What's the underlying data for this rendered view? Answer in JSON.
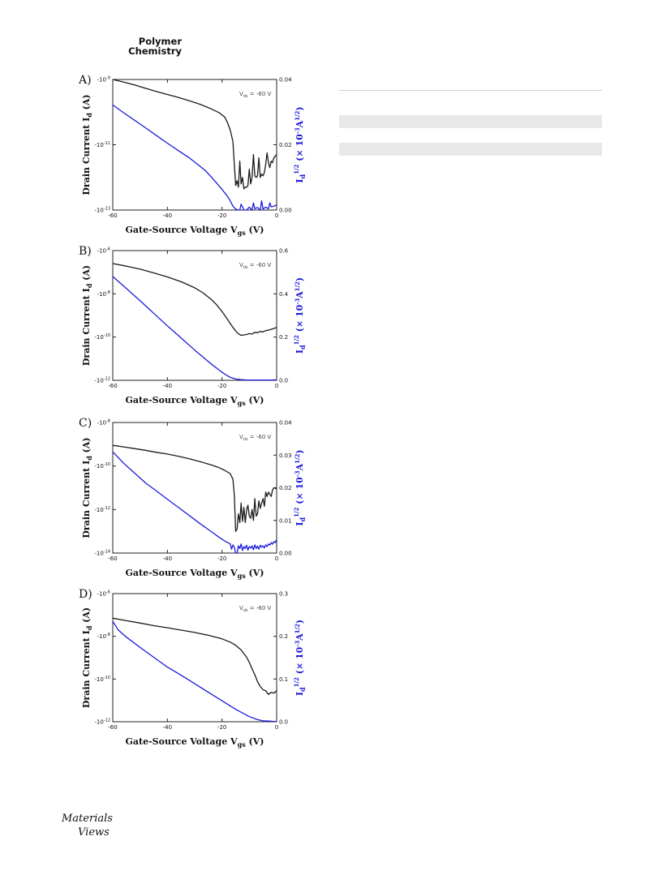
{
  "header": {
    "journal_line1": "Polymer",
    "journal_line2": "Chemistry"
  },
  "logo": {
    "line1": "Materials",
    "line2": "Views"
  },
  "colors": {
    "left_series": "#1a1a1a",
    "right_series": "#1a1adc"
  },
  "chart_data": [
    {
      "type": "line",
      "panel": "A)",
      "annotation": {
        "prefix": "V",
        "sub": "ds",
        "suffix": " = -60 V"
      },
      "xlabel": {
        "main": "Gate-Source Voltage V",
        "sub": "gs",
        "unit": " (V)"
      },
      "ylabel_left": {
        "main": "Drain Current I",
        "sub": "d",
        "unit": " (A)"
      },
      "ylabel_right": {
        "main": "I",
        "sub": "d",
        "sup": "1/2",
        "unit": " (× 10",
        "unit_sup": "-3",
        "unit_tail": "A",
        "unit_sup2": "1/2",
        "close": ")"
      },
      "xlim": [
        -60,
        0
      ],
      "x_ticks": [
        -60,
        -40,
        -20,
        0
      ],
      "x_tick_labels": [
        "-60",
        "-40",
        "-20",
        "0"
      ],
      "left_scale": "log",
      "left_ylim_exp": [
        -13,
        -9
      ],
      "left_ticks_exp": [
        -13,
        -11,
        -9
      ],
      "left_tick_labels": [
        {
          "base": "-10",
          "exp": "-13"
        },
        {
          "base": "-10",
          "exp": "-11"
        },
        {
          "base": "-10",
          "exp": "-9"
        }
      ],
      "right_ylim": [
        0,
        0.04
      ],
      "right_ticks": [
        0.0,
        0.02,
        0.04
      ],
      "right_tick_labels": [
        "0.00",
        "0.02",
        "0.04"
      ],
      "series": [
        {
          "axis": "left",
          "x": [
            -60,
            -56,
            -52,
            -48,
            -44,
            -40,
            -36,
            -32,
            -28,
            -24,
            -21,
            -19,
            -18,
            -17,
            -16,
            -15.5,
            -15,
            -14.5,
            -14,
            -13.5,
            -13,
            -12.5,
            -12,
            -11.5,
            -11,
            -10.5,
            -10,
            -9.5,
            -9,
            -8.5,
            -8,
            -7.5,
            -7,
            -6.5,
            -6,
            -5.5,
            -5,
            -4.5,
            -4,
            -3.5,
            -3,
            -2.5,
            -2,
            -1.5,
            -1,
            -0.5,
            0
          ],
          "y": [
            -9.0,
            -9.08,
            -9.17,
            -9.27,
            -9.37,
            -9.46,
            -9.55,
            -9.65,
            -9.76,
            -9.9,
            -10.02,
            -10.15,
            -10.32,
            -10.55,
            -10.9,
            -11.6,
            -12.25,
            -12.1,
            -12.3,
            -11.5,
            -12.2,
            -12.0,
            -12.35,
            -12.3,
            -12.3,
            -12.25,
            -11.75,
            -12.2,
            -12.0,
            -11.3,
            -11.95,
            -12.0,
            -11.95,
            -11.4,
            -12.0,
            -11.9,
            -11.95,
            -11.85,
            -11.6,
            -11.25,
            -11.55,
            -11.7,
            -11.5,
            -11.55,
            -11.4,
            -11.35,
            -11.3
          ]
        },
        {
          "axis": "right",
          "x": [
            -60,
            -56,
            -52,
            -48,
            -44,
            -40,
            -36,
            -32,
            -28,
            -26,
            -24,
            -22,
            -20,
            -18,
            -17,
            -16,
            -15,
            -14,
            -13.5,
            -13,
            -12.5,
            -12,
            -11,
            -10,
            -9,
            -8.5,
            -8,
            -7,
            -6,
            -5.5,
            -5,
            -4,
            -3,
            -2.5,
            -2,
            -1,
            0
          ],
          "y": [
            0.0322,
            0.0298,
            0.0275,
            0.0252,
            0.0228,
            0.0205,
            0.0182,
            0.016,
            0.0134,
            0.012,
            0.0102,
            0.0083,
            0.0063,
            0.0042,
            0.0028,
            0.0012,
            0.0003,
            0.0,
            0.0,
            0.0018,
            0.001,
            0.0,
            0.0,
            0.0009,
            0.0,
            0.0022,
            0.0004,
            0.0008,
            0.0,
            0.0028,
            0.0003,
            0.0009,
            0.0004,
            0.0022,
            0.001,
            0.0012,
            0.0016
          ]
        }
      ]
    },
    {
      "type": "line",
      "panel": "B)",
      "annotation": {
        "prefix": "V",
        "sub": "ds",
        "suffix": " = -60 V"
      },
      "xlabel": {
        "main": "Gate-Source Voltage V",
        "sub": "gs",
        "unit": " (V)"
      },
      "ylabel_left": {
        "main": "Drain Current I",
        "sub": "d",
        "unit": " (A)"
      },
      "ylabel_right": {
        "main": "I",
        "sub": "d",
        "sup": "1/2",
        "unit": " (× 10",
        "unit_sup": "-3",
        "unit_tail": "A",
        "unit_sup2": "1/2",
        "close": ")"
      },
      "xlim": [
        -60,
        0
      ],
      "x_ticks": [
        -60,
        -40,
        -20,
        0
      ],
      "x_tick_labels": [
        "-60",
        "-40",
        "-20",
        "0"
      ],
      "left_scale": "log",
      "left_ylim_exp": [
        -12,
        -6
      ],
      "left_ticks_exp": [
        -12,
        -10,
        -8,
        -6
      ],
      "left_tick_labels": [
        {
          "base": "-10",
          "exp": "-12"
        },
        {
          "base": "-10",
          "exp": "-10"
        },
        {
          "base": "-10",
          "exp": "-8"
        },
        {
          "base": "-10",
          "exp": "-6"
        }
      ],
      "right_ylim": [
        0,
        0.6
      ],
      "right_ticks": [
        0.0,
        0.2,
        0.4,
        0.6
      ],
      "right_tick_labels": [
        "0.0",
        "0.2",
        "0.4",
        "0.6"
      ],
      "series": [
        {
          "axis": "left",
          "x": [
            -60,
            -55,
            -50,
            -45,
            -40,
            -35,
            -30,
            -27,
            -24,
            -22,
            -20,
            -18,
            -16,
            -15,
            -14,
            -13,
            -12,
            -11,
            -10,
            -9,
            -8,
            -7,
            -6,
            -5,
            -4,
            -3,
            -2,
            -1,
            0
          ],
          "y": [
            -6.6,
            -6.72,
            -6.86,
            -7.03,
            -7.22,
            -7.44,
            -7.72,
            -7.95,
            -8.25,
            -8.5,
            -8.82,
            -9.18,
            -9.55,
            -9.72,
            -9.85,
            -9.92,
            -9.9,
            -9.88,
            -9.84,
            -9.86,
            -9.78,
            -9.8,
            -9.74,
            -9.76,
            -9.7,
            -9.68,
            -9.64,
            -9.6,
            -9.56
          ]
        },
        {
          "axis": "right",
          "x": [
            -60,
            -55,
            -50,
            -45,
            -40,
            -35,
            -30,
            -27,
            -24,
            -21,
            -19,
            -17,
            -15,
            -13,
            -11,
            -9,
            -6,
            -3,
            0
          ],
          "y": [
            0.48,
            0.425,
            0.368,
            0.31,
            0.252,
            0.196,
            0.14,
            0.108,
            0.076,
            0.047,
            0.029,
            0.014,
            0.006,
            0.003,
            0.0015,
            0.001,
            0.0012,
            0.0015,
            0.002
          ]
        }
      ]
    },
    {
      "type": "line",
      "panel": "C)",
      "annotation": {
        "prefix": "V",
        "sub": "ds",
        "suffix": " = -60 V"
      },
      "xlabel": {
        "main": "Gate-Source Voltage V",
        "sub": "gs",
        "unit": " (V)"
      },
      "ylabel_left": {
        "main": "Drain Current I",
        "sub": "d",
        "unit": " (A)"
      },
      "ylabel_right": {
        "main": "I",
        "sub": "d",
        "sup": "1/2",
        "unit": " (× 10",
        "unit_sup": "-3",
        "unit_tail": "A",
        "unit_sup2": "1/2",
        "close": ")"
      },
      "xlim": [
        -60,
        0
      ],
      "x_ticks": [
        -60,
        -40,
        -20,
        0
      ],
      "x_tick_labels": [
        "-60",
        "-40",
        "-20",
        "0"
      ],
      "left_scale": "log",
      "left_ylim_exp": [
        -14,
        -8
      ],
      "left_ticks_exp": [
        -14,
        -12,
        -10,
        -8
      ],
      "left_tick_labels": [
        {
          "base": "-10",
          "exp": "-14"
        },
        {
          "base": "-10",
          "exp": "-12"
        },
        {
          "base": "-10",
          "exp": "-10"
        },
        {
          "base": "-10",
          "exp": "-8"
        }
      ],
      "right_ylim": [
        0,
        0.04
      ],
      "right_ticks": [
        0.0,
        0.01,
        0.02,
        0.03,
        0.04
      ],
      "right_tick_labels": [
        "0.00",
        "0.01",
        "0.02",
        "0.03",
        "0.04"
      ],
      "series": [
        {
          "axis": "left",
          "x": [
            -60,
            -56,
            -52,
            -48,
            -44,
            -40,
            -36,
            -32,
            -28,
            -24,
            -21,
            -19,
            -17,
            -16,
            -15.5,
            -15,
            -14.5,
            -14,
            -13.5,
            -13,
            -12.5,
            -12,
            -11.5,
            -11,
            -10.5,
            -10,
            -9.5,
            -9,
            -8.5,
            -8,
            -7.5,
            -7,
            -6.5,
            -6,
            -5.5,
            -5,
            -4.5,
            -4,
            -3.5,
            -3,
            -2.5,
            -2,
            -1.5,
            -1,
            0
          ],
          "y": [
            -9.05,
            -9.12,
            -9.2,
            -9.28,
            -9.37,
            -9.45,
            -9.55,
            -9.67,
            -9.8,
            -9.95,
            -10.08,
            -10.2,
            -10.35,
            -10.6,
            -11.3,
            -13.0,
            -12.9,
            -12.2,
            -12.6,
            -11.7,
            -12.55,
            -11.9,
            -12.6,
            -12.0,
            -11.8,
            -12.3,
            -12.4,
            -12.0,
            -12.5,
            -11.5,
            -12.3,
            -12.2,
            -11.6,
            -11.95,
            -11.7,
            -11.5,
            -11.85,
            -11.2,
            -11.4,
            -11.2,
            -11.3,
            -11.4,
            -11.1,
            -11.0,
            -11.05
          ]
        },
        {
          "axis": "right",
          "x": [
            -60,
            -56,
            -52,
            -48,
            -44,
            -40,
            -36,
            -32,
            -28,
            -24,
            -21,
            -19,
            -17,
            -16.5,
            -16,
            -15.5,
            -15,
            -14.5,
            -14,
            -13.5,
            -13,
            -12.5,
            -12,
            -11.5,
            -11,
            -10.5,
            -10,
            -9.5,
            -9,
            -8.5,
            -8,
            -7.5,
            -7,
            -6.5,
            -6,
            -5.5,
            -5,
            -4.5,
            -4,
            -3.5,
            -3,
            -2.5,
            -2,
            -1.5,
            -1,
            -0.5,
            0
          ],
          "y": [
            0.031,
            0.0275,
            0.0245,
            0.0215,
            0.019,
            0.0165,
            0.014,
            0.0115,
            0.009,
            0.0066,
            0.0048,
            0.0037,
            0.0028,
            0.0012,
            0.0025,
            0.0018,
            0.0,
            0.0,
            0.0022,
            0.0014,
            0.0028,
            0.0008,
            0.002,
            0.0014,
            0.0024,
            0.0009,
            0.002,
            0.0015,
            0.0022,
            0.001,
            0.0025,
            0.0014,
            0.0021,
            0.0012,
            0.0024,
            0.0018,
            0.0022,
            0.0016,
            0.0025,
            0.002,
            0.0028,
            0.0024,
            0.0032,
            0.0027,
            0.0035,
            0.0032,
            0.0042
          ]
        }
      ]
    },
    {
      "type": "line",
      "panel": "D)",
      "annotation": {
        "prefix": "V",
        "sub": "ds",
        "suffix": " = -60 V"
      },
      "xlabel": {
        "main": "Gate-Source Voltage V",
        "sub": "gs",
        "unit": " (V)"
      },
      "ylabel_left": {
        "main": "Drain Current I",
        "sub": "d",
        "unit": " (A)"
      },
      "ylabel_right": {
        "main": "I",
        "sub": "d",
        "sup": "1/2",
        "unit": " (× 10",
        "unit_sup": "-3",
        "unit_tail": "A",
        "unit_sup2": "1/2",
        "close": ")"
      },
      "xlim": [
        -60,
        0
      ],
      "x_ticks": [
        -60,
        -40,
        -20,
        0
      ],
      "x_tick_labels": [
        "-60",
        "-40",
        "-20",
        "0"
      ],
      "left_scale": "log",
      "left_ylim_exp": [
        -12,
        -6
      ],
      "left_ticks_exp": [
        -12,
        -10,
        -8,
        -6
      ],
      "left_tick_labels": [
        {
          "base": "-10",
          "exp": "-12"
        },
        {
          "base": "-10",
          "exp": "-10"
        },
        {
          "base": "-10",
          "exp": "-8"
        },
        {
          "base": "-10",
          "exp": "-6"
        }
      ],
      "right_ylim": [
        0,
        0.3
      ],
      "right_ticks": [
        0.0,
        0.1,
        0.2,
        0.3
      ],
      "right_tick_labels": [
        "0.0",
        "0.1",
        "0.2",
        "0.3"
      ],
      "series": [
        {
          "axis": "left",
          "x": [
            -60,
            -55,
            -50,
            -45,
            -40,
            -35,
            -30,
            -25,
            -20,
            -17,
            -15,
            -13,
            -11,
            -10,
            -9,
            -8,
            -7,
            -6,
            -5,
            -4,
            -3,
            -2,
            -1,
            0
          ],
          "y": [
            -7.15,
            -7.27,
            -7.38,
            -7.5,
            -7.6,
            -7.71,
            -7.82,
            -7.95,
            -8.12,
            -8.27,
            -8.42,
            -8.64,
            -8.98,
            -9.22,
            -9.52,
            -9.8,
            -10.12,
            -10.35,
            -10.5,
            -10.55,
            -10.72,
            -10.62,
            -10.66,
            -10.55
          ]
        },
        {
          "axis": "right",
          "x": [
            -60,
            -58,
            -55,
            -50,
            -45,
            -40,
            -35,
            -30,
            -25,
            -20,
            -15,
            -10,
            -7,
            -5,
            -3,
            -1,
            0
          ],
          "y": [
            0.235,
            0.215,
            0.198,
            0.174,
            0.151,
            0.128,
            0.109,
            0.089,
            0.069,
            0.049,
            0.029,
            0.012,
            0.005,
            0.002,
            0.0015,
            0.0008,
            0.0005
          ]
        }
      ]
    }
  ]
}
